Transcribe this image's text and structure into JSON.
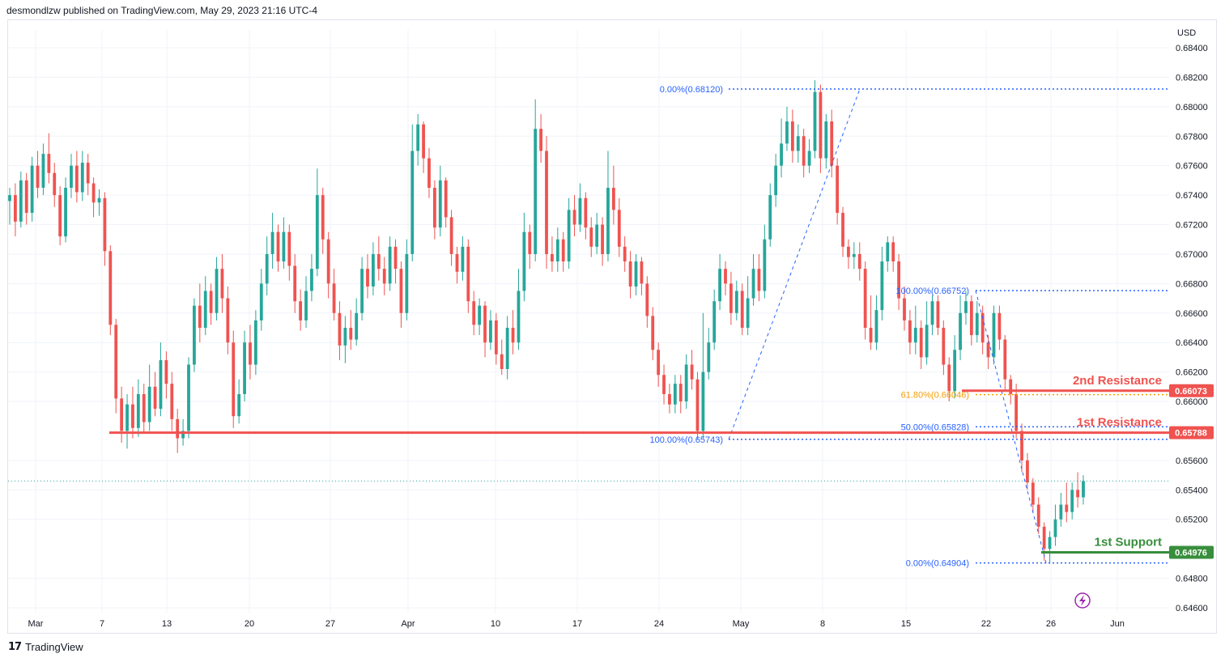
{
  "header": {
    "text": "desmondlzw published on TradingView.com, May 29, 2023 21:16 UTC-4"
  },
  "footer": {
    "logo_text": "TradingView",
    "logo_icon": "tradingview-logo-icon"
  },
  "colors": {
    "up": "#26a69a",
    "down": "#ef5350",
    "resistance": "#ef5350",
    "support": "#388e3c",
    "fib_blue": "#2962ff",
    "fib_gold": "#f59d00",
    "grid": "#f0f3fa",
    "axis_text": "#131722",
    "last_price_line": "#26a69a",
    "lightning": "#9c27b0"
  },
  "chart_data": {
    "type": "candlestick",
    "currency": "USD",
    "x_labels": [
      "Mar",
      "7",
      "13",
      "20",
      "27",
      "Apr",
      "10",
      "17",
      "24",
      "May",
      "8",
      "15",
      "22",
      "26",
      "Jun"
    ],
    "y_ticks": [
      "0.68400",
      "0.68200",
      "0.68000",
      "0.67800",
      "0.67600",
      "0.67400",
      "0.67200",
      "0.67000",
      "0.66800",
      "0.66600",
      "0.66400",
      "0.66200",
      "0.66000",
      "0.65600",
      "0.65400",
      "0.65200",
      "0.64800",
      "0.64600"
    ],
    "ylim": [
      0.6455,
      0.6855
    ],
    "levels": [
      {
        "name": "2nd Resistance",
        "label": "2nd Resistance",
        "price_label": "0.66073",
        "price": 0.66073,
        "kind": "resistance"
      },
      {
        "name": "1st Resistance",
        "label": "1st Resistance",
        "price_label": "0.65788",
        "price": 0.65788,
        "kind": "resistance"
      },
      {
        "name": "1st Support",
        "label": "1st Support",
        "price_label": "0.64976",
        "price": 0.64976,
        "kind": "support"
      }
    ],
    "fib_drawings": [
      {
        "levels": [
          {
            "label": "0.00%(0.68120)",
            "price": 0.6812,
            "color": "blue"
          },
          {
            "label": "100.00%(0.65743)",
            "price": 0.65743,
            "color": "blue"
          }
        ]
      },
      {
        "levels": [
          {
            "label": "100.00%(0.66752)",
            "price": 0.66752,
            "color": "blue"
          },
          {
            "label": "61.80%(0.66046)",
            "price": 0.66046,
            "color": "gold"
          },
          {
            "label": "50.00%(0.65828)",
            "price": 0.65828,
            "color": "blue"
          },
          {
            "label": "0.00%(0.64904)",
            "price": 0.64904,
            "color": "blue"
          }
        ]
      }
    ],
    "last_price": 0.6546,
    "candles": [
      [
        0.6736,
        0.674,
        0.672,
        0.6745
      ],
      [
        0.674,
        0.6722,
        0.6712,
        0.6748
      ],
      [
        0.6722,
        0.675,
        0.6718,
        0.6756
      ],
      [
        0.675,
        0.6728,
        0.672,
        0.6755
      ],
      [
        0.6728,
        0.676,
        0.6722,
        0.6766
      ],
      [
        0.676,
        0.6745,
        0.6738,
        0.677
      ],
      [
        0.6745,
        0.6768,
        0.674,
        0.6775
      ],
      [
        0.6768,
        0.6755,
        0.6748,
        0.6782
      ],
      [
        0.6755,
        0.674,
        0.6732,
        0.6762
      ],
      [
        0.674,
        0.6712,
        0.6706,
        0.6746
      ],
      [
        0.6712,
        0.6745,
        0.6708,
        0.6752
      ],
      [
        0.6745,
        0.676,
        0.6738,
        0.6768
      ],
      [
        0.676,
        0.6742,
        0.6735,
        0.677
      ],
      [
        0.6742,
        0.6762,
        0.6736,
        0.677
      ],
      [
        0.6762,
        0.6748,
        0.674,
        0.6768
      ],
      [
        0.6748,
        0.6735,
        0.6725,
        0.6752
      ],
      [
        0.6735,
        0.6738,
        0.6726,
        0.6744
      ],
      [
        0.6738,
        0.6702,
        0.6692,
        0.6742
      ],
      [
        0.6702,
        0.6652,
        0.6645,
        0.6706
      ],
      [
        0.6652,
        0.6602,
        0.6592,
        0.6656
      ],
      [
        0.6602,
        0.658,
        0.6572,
        0.661
      ],
      [
        0.658,
        0.6598,
        0.6568,
        0.6605
      ],
      [
        0.6598,
        0.6582,
        0.6575,
        0.661
      ],
      [
        0.6582,
        0.6605,
        0.6576,
        0.6615
      ],
      [
        0.6605,
        0.6586,
        0.6578,
        0.6612
      ],
      [
        0.6586,
        0.661,
        0.658,
        0.6625
      ],
      [
        0.661,
        0.6595,
        0.659,
        0.662
      ],
      [
        0.6595,
        0.6628,
        0.659,
        0.664
      ],
      [
        0.6628,
        0.6612,
        0.6602,
        0.6634
      ],
      [
        0.6612,
        0.6588,
        0.658,
        0.662
      ],
      [
        0.6588,
        0.6575,
        0.6565,
        0.6595
      ],
      [
        0.6575,
        0.658,
        0.657,
        0.6588
      ],
      [
        0.658,
        0.6625,
        0.6575,
        0.663
      ],
      [
        0.6625,
        0.6665,
        0.662,
        0.667
      ],
      [
        0.6665,
        0.665,
        0.664,
        0.668
      ],
      [
        0.665,
        0.6675,
        0.6645,
        0.6685
      ],
      [
        0.6675,
        0.666,
        0.6652,
        0.668
      ],
      [
        0.666,
        0.669,
        0.6655,
        0.6698
      ],
      [
        0.669,
        0.667,
        0.666,
        0.67
      ],
      [
        0.667,
        0.664,
        0.6632,
        0.6678
      ],
      [
        0.664,
        0.659,
        0.6582,
        0.6648
      ],
      [
        0.659,
        0.6605,
        0.6585,
        0.6615
      ],
      [
        0.6605,
        0.664,
        0.66,
        0.6648
      ],
      [
        0.664,
        0.6625,
        0.6615,
        0.6652
      ],
      [
        0.6625,
        0.6655,
        0.6618,
        0.6662
      ],
      [
        0.6655,
        0.668,
        0.6648,
        0.669
      ],
      [
        0.668,
        0.67,
        0.6672,
        0.6712
      ],
      [
        0.67,
        0.6715,
        0.669,
        0.6728
      ],
      [
        0.6715,
        0.6695,
        0.6688,
        0.672
      ],
      [
        0.6695,
        0.6715,
        0.669,
        0.6725
      ],
      [
        0.6715,
        0.6692,
        0.6682,
        0.672
      ],
      [
        0.6692,
        0.6668,
        0.666,
        0.67
      ],
      [
        0.6668,
        0.6655,
        0.6648,
        0.6676
      ],
      [
        0.6655,
        0.6675,
        0.665,
        0.6685
      ],
      [
        0.6675,
        0.669,
        0.6668,
        0.67
      ],
      [
        0.669,
        0.674,
        0.6685,
        0.6758
      ],
      [
        0.674,
        0.671,
        0.67,
        0.6745
      ],
      [
        0.671,
        0.668,
        0.667,
        0.6715
      ],
      [
        0.668,
        0.666,
        0.6655,
        0.669
      ],
      [
        0.666,
        0.6638,
        0.6628,
        0.6668
      ],
      [
        0.6638,
        0.665,
        0.6626,
        0.6658
      ],
      [
        0.665,
        0.6642,
        0.6635,
        0.6662
      ],
      [
        0.6642,
        0.666,
        0.6638,
        0.667
      ],
      [
        0.666,
        0.669,
        0.6655,
        0.6698
      ],
      [
        0.669,
        0.6678,
        0.667,
        0.67
      ],
      [
        0.6678,
        0.67,
        0.6672,
        0.6708
      ],
      [
        0.67,
        0.669,
        0.6682,
        0.6712
      ],
      [
        0.669,
        0.668,
        0.6672,
        0.6698
      ],
      [
        0.668,
        0.6705,
        0.6675,
        0.6712
      ],
      [
        0.6705,
        0.669,
        0.668,
        0.671
      ],
      [
        0.669,
        0.666,
        0.665,
        0.6695
      ],
      [
        0.666,
        0.67,
        0.6655,
        0.671
      ],
      [
        0.67,
        0.677,
        0.6695,
        0.6788
      ],
      [
        0.677,
        0.6788,
        0.676,
        0.6795
      ],
      [
        0.6788,
        0.6765,
        0.6755,
        0.679
      ],
      [
        0.6765,
        0.6745,
        0.6738,
        0.6772
      ],
      [
        0.6745,
        0.6718,
        0.671,
        0.675
      ],
      [
        0.6718,
        0.675,
        0.6712,
        0.676
      ],
      [
        0.675,
        0.6725,
        0.6718,
        0.6752
      ],
      [
        0.6725,
        0.67,
        0.6692,
        0.673
      ],
      [
        0.67,
        0.6688,
        0.668,
        0.6705
      ],
      [
        0.6688,
        0.6705,
        0.6682,
        0.6712
      ],
      [
        0.6705,
        0.6668,
        0.666,
        0.671
      ],
      [
        0.6668,
        0.6652,
        0.6645,
        0.6675
      ],
      [
        0.6652,
        0.6665,
        0.6645,
        0.667
      ],
      [
        0.6665,
        0.664,
        0.663,
        0.6668
      ],
      [
        0.664,
        0.6655,
        0.6635,
        0.6662
      ],
      [
        0.6655,
        0.6632,
        0.6625,
        0.666
      ],
      [
        0.6632,
        0.6622,
        0.6618,
        0.6642
      ],
      [
        0.6622,
        0.665,
        0.6615,
        0.6658
      ],
      [
        0.665,
        0.664,
        0.6632,
        0.6662
      ],
      [
        0.664,
        0.6675,
        0.6635,
        0.669
      ],
      [
        0.6675,
        0.6715,
        0.6668,
        0.6728
      ],
      [
        0.6715,
        0.67,
        0.669,
        0.672
      ],
      [
        0.67,
        0.6785,
        0.6695,
        0.6805
      ],
      [
        0.6785,
        0.677,
        0.6762,
        0.6795
      ],
      [
        0.677,
        0.67,
        0.669,
        0.678
      ],
      [
        0.67,
        0.6695,
        0.6688,
        0.6712
      ],
      [
        0.6695,
        0.671,
        0.6688,
        0.6718
      ],
      [
        0.671,
        0.6695,
        0.6688,
        0.6715
      ],
      [
        0.6695,
        0.673,
        0.669,
        0.6738
      ],
      [
        0.673,
        0.672,
        0.6712,
        0.674
      ],
      [
        0.672,
        0.6738,
        0.6715,
        0.6748
      ],
      [
        0.6738,
        0.6718,
        0.671,
        0.6742
      ],
      [
        0.6718,
        0.6705,
        0.6698,
        0.6725
      ],
      [
        0.6705,
        0.672,
        0.67,
        0.6728
      ],
      [
        0.672,
        0.67,
        0.6692,
        0.6725
      ],
      [
        0.67,
        0.6745,
        0.6695,
        0.677
      ],
      [
        0.6745,
        0.673,
        0.672,
        0.676
      ],
      [
        0.673,
        0.6705,
        0.6698,
        0.6738
      ],
      [
        0.6705,
        0.6695,
        0.6688,
        0.6712
      ],
      [
        0.6695,
        0.6678,
        0.667,
        0.6702
      ],
      [
        0.6678,
        0.6695,
        0.6672,
        0.67
      ],
      [
        0.6695,
        0.668,
        0.6672,
        0.6698
      ],
      [
        0.668,
        0.6658,
        0.665,
        0.6685
      ],
      [
        0.6658,
        0.6635,
        0.6628,
        0.6664
      ],
      [
        0.6635,
        0.6618,
        0.661,
        0.664
      ],
      [
        0.6618,
        0.6605,
        0.6598,
        0.6625
      ],
      [
        0.6605,
        0.6598,
        0.6592,
        0.6612
      ],
      [
        0.6598,
        0.6612,
        0.6592,
        0.6618
      ],
      [
        0.6612,
        0.66,
        0.6592,
        0.6618
      ],
      [
        0.66,
        0.6625,
        0.6595,
        0.6632
      ],
      [
        0.6625,
        0.6615,
        0.6608,
        0.6635
      ],
      [
        0.6615,
        0.658,
        0.6574,
        0.662
      ],
      [
        0.658,
        0.662,
        0.6575,
        0.666
      ],
      [
        0.662,
        0.664,
        0.6615,
        0.665
      ],
      [
        0.664,
        0.6668,
        0.6635,
        0.6676
      ],
      [
        0.6668,
        0.669,
        0.6662,
        0.67
      ],
      [
        0.669,
        0.668,
        0.6672,
        0.6695
      ],
      [
        0.668,
        0.666,
        0.6652,
        0.6688
      ],
      [
        0.666,
        0.6675,
        0.6655,
        0.6682
      ],
      [
        0.6675,
        0.665,
        0.6645,
        0.668
      ],
      [
        0.665,
        0.667,
        0.6645,
        0.6685
      ],
      [
        0.667,
        0.669,
        0.6665,
        0.67
      ],
      [
        0.669,
        0.6675,
        0.6668,
        0.67
      ],
      [
        0.6675,
        0.671,
        0.667,
        0.672
      ],
      [
        0.671,
        0.674,
        0.6705,
        0.6748
      ],
      [
        0.674,
        0.676,
        0.6732,
        0.6768
      ],
      [
        0.676,
        0.6775,
        0.6752,
        0.6792
      ],
      [
        0.6775,
        0.679,
        0.677,
        0.68
      ],
      [
        0.679,
        0.677,
        0.6762,
        0.6798
      ],
      [
        0.677,
        0.678,
        0.6762,
        0.6788
      ],
      [
        0.678,
        0.676,
        0.6752,
        0.6785
      ],
      [
        0.676,
        0.677,
        0.6755,
        0.6778
      ],
      [
        0.677,
        0.681,
        0.6765,
        0.6818
      ],
      [
        0.681,
        0.6765,
        0.6755,
        0.6815
      ],
      [
        0.6765,
        0.679,
        0.6758,
        0.6795
      ],
      [
        0.679,
        0.676,
        0.6752,
        0.6798
      ],
      [
        0.676,
        0.6728,
        0.672,
        0.6765
      ],
      [
        0.6728,
        0.6705,
        0.6698,
        0.6732
      ],
      [
        0.6705,
        0.6698,
        0.669,
        0.671
      ],
      [
        0.6698,
        0.67,
        0.669,
        0.6708
      ],
      [
        0.67,
        0.669,
        0.6682,
        0.6708
      ],
      [
        0.669,
        0.665,
        0.6642,
        0.6695
      ],
      [
        0.665,
        0.664,
        0.6635,
        0.6672
      ],
      [
        0.664,
        0.6662,
        0.6635,
        0.6672
      ],
      [
        0.6662,
        0.6695,
        0.6655,
        0.6705
      ],
      [
        0.6695,
        0.6708,
        0.6688,
        0.6712
      ],
      [
        0.6708,
        0.6695,
        0.6688,
        0.6712
      ],
      [
        0.6695,
        0.667,
        0.6662,
        0.67
      ],
      [
        0.667,
        0.6655,
        0.6648,
        0.6678
      ],
      [
        0.6655,
        0.664,
        0.6632,
        0.6662
      ],
      [
        0.664,
        0.665,
        0.6632,
        0.6665
      ],
      [
        0.665,
        0.663,
        0.6622,
        0.6655
      ],
      [
        0.663,
        0.6652,
        0.6625,
        0.6668
      ],
      [
        0.6652,
        0.6668,
        0.6645,
        0.6672
      ],
      [
        0.6668,
        0.665,
        0.6645,
        0.6672
      ],
      [
        0.665,
        0.6625,
        0.6618,
        0.6655
      ],
      [
        0.6625,
        0.6607,
        0.66,
        0.663
      ],
      [
        0.6607,
        0.6635,
        0.6602,
        0.6645
      ],
      [
        0.6635,
        0.666,
        0.6628,
        0.6672
      ],
      [
        0.666,
        0.6668,
        0.6652,
        0.6675
      ],
      [
        0.6668,
        0.6645,
        0.6638,
        0.6672
      ],
      [
        0.6645,
        0.666,
        0.664,
        0.6668
      ],
      [
        0.666,
        0.664,
        0.6632,
        0.6665
      ],
      [
        0.664,
        0.663,
        0.6622,
        0.6645
      ],
      [
        0.663,
        0.666,
        0.6625,
        0.6665
      ],
      [
        0.666,
        0.6642,
        0.6635,
        0.6665
      ],
      [
        0.6642,
        0.6615,
        0.6608,
        0.6645
      ],
      [
        0.6615,
        0.6605,
        0.6598,
        0.6618
      ],
      [
        0.6605,
        0.658,
        0.6575,
        0.6612
      ],
      [
        0.658,
        0.656,
        0.6552,
        0.6585
      ],
      [
        0.656,
        0.6545,
        0.654,
        0.6565
      ],
      [
        0.6545,
        0.653,
        0.6525,
        0.6548
      ],
      [
        0.653,
        0.6515,
        0.651,
        0.6535
      ],
      [
        0.6515,
        0.65,
        0.6492,
        0.6518
      ],
      [
        0.65,
        0.6508,
        0.649,
        0.6512
      ],
      [
        0.6508,
        0.652,
        0.6502,
        0.653
      ],
      [
        0.652,
        0.653,
        0.6515,
        0.6538
      ],
      [
        0.653,
        0.6525,
        0.6518,
        0.6545
      ],
      [
        0.6525,
        0.654,
        0.652,
        0.6545
      ],
      [
        0.654,
        0.6535,
        0.6528,
        0.6552
      ],
      [
        0.6535,
        0.6546,
        0.653,
        0.655
      ]
    ]
  }
}
